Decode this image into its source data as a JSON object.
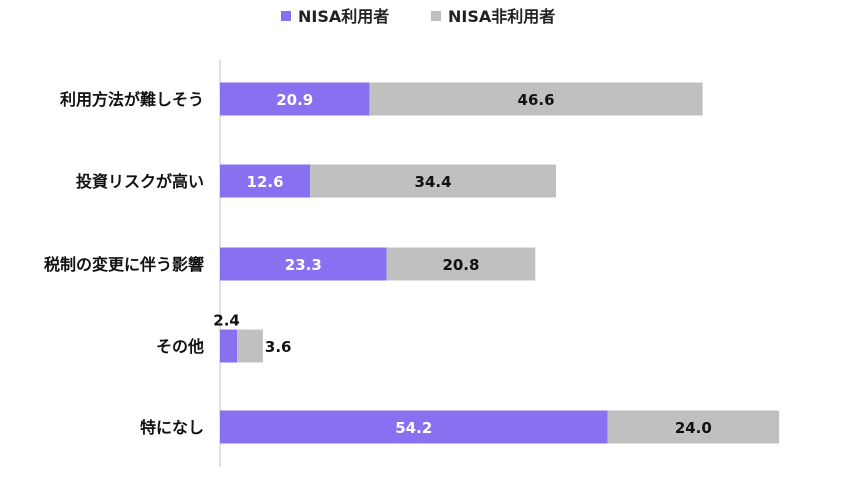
{
  "chart_data": {
    "type": "bar",
    "orientation": "horizontal",
    "stacked": true,
    "categories": [
      "利用方法が難しそう",
      "投資リスクが高い",
      "税制の変更に伴う影響",
      "その他",
      "特になし"
    ],
    "series": [
      {
        "name": "NISA利用者",
        "values": [
          20.9,
          12.6,
          23.3,
          2.4,
          54.2
        ],
        "color": "#8870f0",
        "label_color": "#ffffff"
      },
      {
        "name": "NISA非利用者",
        "values": [
          46.6,
          34.4,
          20.8,
          3.6,
          24.0
        ],
        "color": "#c0c0c0",
        "label_color": "#111111"
      }
    ],
    "value_labels": [
      [
        "20.9",
        "12.6",
        "23.3",
        "2.4",
        "54.2"
      ],
      [
        "46.6",
        "34.4",
        "20.8",
        "3.6",
        "24.0"
      ]
    ],
    "xlim": [
      0,
      100
    ],
    "legend_position": "top",
    "grid": false
  }
}
